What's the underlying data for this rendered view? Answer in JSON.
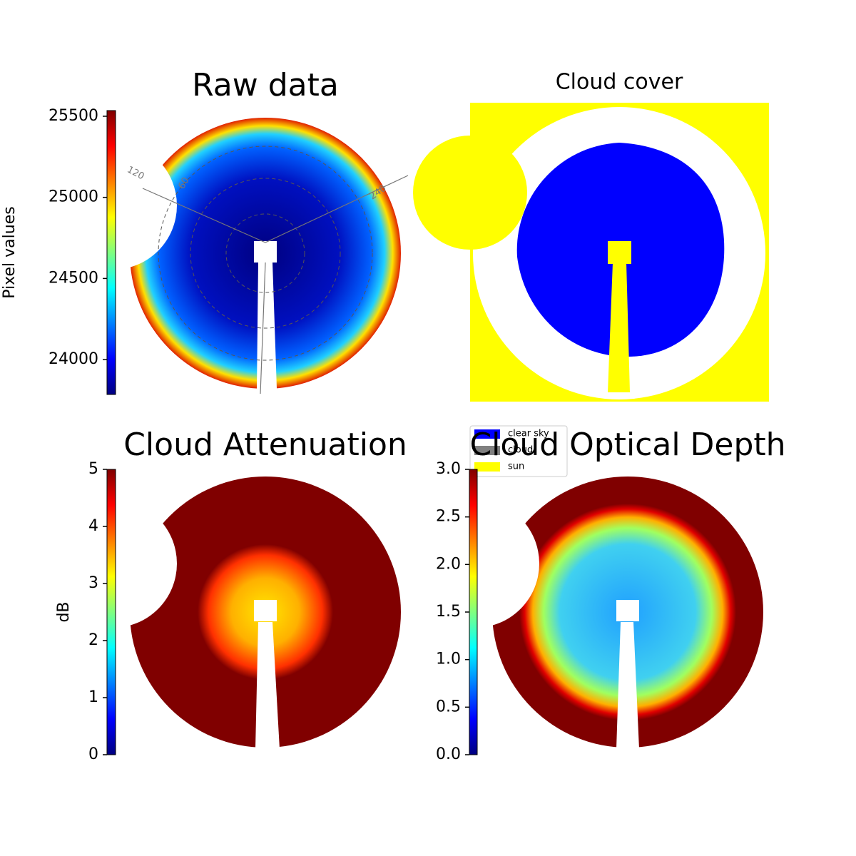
{
  "chart_data": [
    {
      "type": "heatmap",
      "title": "Raw data",
      "colorbar_label": "Pixel values",
      "colormap": "jet",
      "clim": [
        23785,
        25535
      ],
      "cticks": [
        24000,
        24500,
        25000,
        25500
      ],
      "annotations": [
        "120",
        "60",
        "240"
      ]
    },
    {
      "type": "image",
      "title": "Cloud cover",
      "legend": [
        {
          "name": "clear sky",
          "color": "#0000ff"
        },
        {
          "name": "cloud",
          "color": "#808080"
        },
        {
          "name": "sun",
          "color": "#ffff00"
        }
      ]
    },
    {
      "type": "heatmap",
      "title": "Cloud Attenuation",
      "colorbar_label": "dB",
      "colormap": "jet",
      "clim": [
        0,
        5
      ],
      "cticks": [
        0,
        1,
        2,
        3,
        4,
        5
      ]
    },
    {
      "type": "heatmap",
      "title": "Cloud Optical Depth",
      "colormap": "jet",
      "clim": [
        0,
        3
      ],
      "cticks": [
        {
          "value": 0,
          "label": "0.0"
        },
        0.5,
        {
          "value": 1,
          "label": "1.0"
        },
        1.5,
        {
          "value": 2,
          "label": "2.0"
        },
        2.5,
        {
          "value": 3,
          "label": "3.0"
        }
      ]
    }
  ]
}
